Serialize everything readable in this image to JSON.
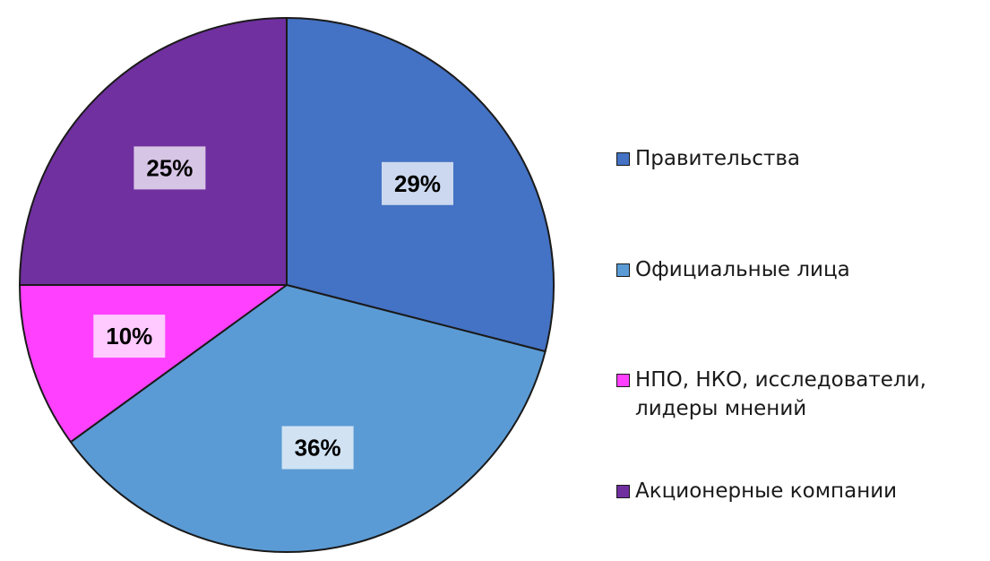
{
  "chart_data": {
    "type": "pie",
    "title": "",
    "start_angle_deg": 0,
    "direction": "clockwise",
    "slices": [
      {
        "label": "Правительства",
        "value": 29,
        "value_label": "29%",
        "color": "#4472C4"
      },
      {
        "label": "Официальные лица",
        "value": 36,
        "value_label": "36%",
        "color": "#5B9BD5"
      },
      {
        "label": "НПО, НКО, исследователи,\nлидеры мнений",
        "value": 10,
        "value_label": "10%",
        "color": "#FF40FF"
      },
      {
        "label": "Акционерные компании",
        "value": 25,
        "value_label": "25%",
        "color": "#7030A0"
      }
    ],
    "legend_position": "right",
    "border_color": "#1a1a1a"
  }
}
